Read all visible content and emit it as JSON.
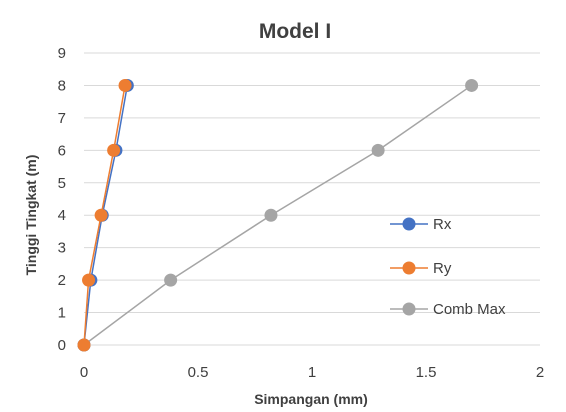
{
  "chart_data": {
    "type": "scatter",
    "title": "Model I",
    "xlabel": "Simpangan (mm)",
    "ylabel": "Tinggi Tingkat (m)",
    "xlim": [
      0,
      2
    ],
    "ylim": [
      0,
      9
    ],
    "xticks": [
      0,
      0.5,
      1,
      1.5,
      2
    ],
    "yticks": [
      0,
      1,
      2,
      3,
      4,
      5,
      6,
      7,
      8,
      9
    ],
    "grid": "horizontal",
    "legend_position": "right",
    "series": [
      {
        "name": "Rx",
        "color": "#4472C4",
        "x": [
          0,
          0.03,
          0.08,
          0.14,
          0.19
        ],
        "y": [
          0,
          2,
          4,
          6,
          8
        ]
      },
      {
        "name": "Ry",
        "color": "#ED7D31",
        "x": [
          0,
          0.02,
          0.075,
          0.13,
          0.18
        ],
        "y": [
          0,
          2,
          4,
          6,
          8
        ]
      },
      {
        "name": "Comb Max",
        "color": "#A5A5A5",
        "x": [
          0,
          0.38,
          0.82,
          1.29,
          1.7
        ],
        "y": [
          0,
          2,
          4,
          6,
          8
        ]
      }
    ]
  }
}
